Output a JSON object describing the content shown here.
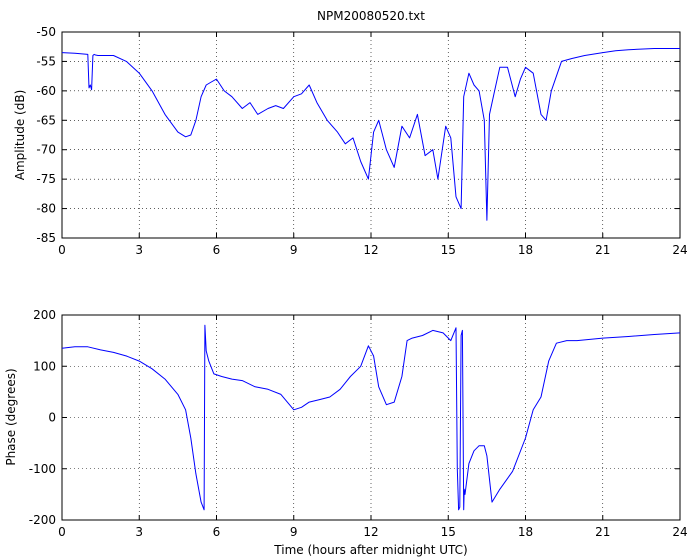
{
  "chart_data": [
    {
      "type": "line",
      "title": "NPM20080520.txt",
      "xlabel": "",
      "ylabel": "Amplitude (dB)",
      "xlim": [
        0,
        24
      ],
      "ylim": [
        -85,
        -50
      ],
      "xticks": [
        "0",
        "3",
        "6",
        "9",
        "12",
        "15",
        "18",
        "21",
        "24"
      ],
      "yticks": [
        "-85",
        "-80",
        "-75",
        "-70",
        "-65",
        "-60",
        "-55",
        "-50"
      ],
      "grid": true,
      "line_color": "#0000ff",
      "series": [
        {
          "x": [
            0,
            0.5,
            1.0,
            1.05,
            1.1,
            1.15,
            1.2,
            1.25,
            1.3,
            1.4,
            2,
            2.5,
            3,
            3.5,
            4,
            4.5,
            4.8,
            5.0,
            5.2,
            5.4,
            5.6,
            5.8,
            6.0,
            6.3,
            6.6,
            7.0,
            7.3,
            7.6,
            8.0,
            8.3,
            8.6,
            9.0,
            9.3,
            9.6,
            9.9,
            10.3,
            10.7,
            11.0,
            11.3,
            11.6,
            11.9,
            12.1,
            12.3,
            12.6,
            12.9,
            13.2,
            13.5,
            13.8,
            14.1,
            14.4,
            14.6,
            14.9,
            15.1,
            15.3,
            15.5,
            15.6,
            15.8,
            16.0,
            16.2,
            16.4,
            16.5,
            16.6,
            16.8,
            17.0,
            17.3,
            17.6,
            17.8,
            18.0,
            18.3,
            18.6,
            18.8,
            19.0,
            19.4,
            19.8,
            20.3,
            21.0,
            21.5,
            22,
            23,
            24
          ],
          "y": [
            -53.5,
            -53.6,
            -53.8,
            -59.5,
            -59,
            -59.8,
            -54,
            -53.8,
            -53.9,
            -54,
            -54,
            -55,
            -57,
            -60,
            -64,
            -67,
            -67.8,
            -67.5,
            -65,
            -61,
            -59,
            -58.5,
            -58,
            -60,
            -61,
            -63,
            -62,
            -64,
            -63,
            -62.5,
            -63,
            -61,
            -60.5,
            -59,
            -62,
            -65,
            -67,
            -69,
            -68,
            -72,
            -75,
            -67,
            -65,
            -70,
            -73,
            -66,
            -68,
            -64,
            -71,
            -70,
            -75,
            -66,
            -68,
            -78,
            -80,
            -61,
            -57,
            -59,
            -60,
            -65,
            -82,
            -64,
            -60,
            -56,
            -56,
            -61,
            -58,
            -56,
            -57,
            -64,
            -65,
            -60,
            -55,
            -54.5,
            -54,
            -53.5,
            -53.2,
            -53,
            -52.8,
            -52.8
          ]
        }
      ]
    },
    {
      "type": "line",
      "title": "",
      "xlabel": "Time (hours after midnight UTC)",
      "ylabel": "Phase (degrees)",
      "xlim": [
        0,
        24
      ],
      "ylim": [
        -200,
        200
      ],
      "xticks": [
        "0",
        "3",
        "6",
        "9",
        "12",
        "15",
        "18",
        "21",
        "24"
      ],
      "yticks": [
        "-200",
        "-100",
        "0",
        "100",
        "200"
      ],
      "grid": true,
      "line_color": "#0000ff",
      "series": [
        {
          "x": [
            0,
            0.5,
            1.0,
            1.5,
            2,
            2.5,
            3,
            3.5,
            4,
            4.5,
            4.8,
            5.0,
            5.2,
            5.4,
            5.52,
            5.55,
            5.6,
            5.7,
            5.9,
            6.2,
            6.6,
            7.0,
            7.5,
            8.0,
            8.5,
            9.0,
            9.3,
            9.6,
            10.0,
            10.4,
            10.8,
            11.2,
            11.6,
            11.9,
            12.1,
            12.3,
            12.6,
            12.9,
            13.2,
            13.4,
            13.6,
            14.0,
            14.4,
            14.8,
            15.1,
            15.3,
            15.35,
            15.4,
            15.45,
            15.5,
            15.55,
            15.6,
            15.62,
            15.65,
            15.8,
            16.0,
            16.2,
            16.4,
            16.5,
            16.7,
            17.0,
            17.5,
            18.0,
            18.3,
            18.6,
            18.9,
            19.2,
            19.6,
            20,
            21,
            22,
            23,
            24
          ],
          "y": [
            135,
            138,
            138,
            132,
            127,
            120,
            110,
            95,
            75,
            45,
            15,
            -40,
            -110,
            -165,
            -180,
            180,
            130,
            110,
            85,
            80,
            75,
            72,
            60,
            55,
            45,
            15,
            20,
            30,
            35,
            40,
            55,
            80,
            100,
            140,
            120,
            60,
            25,
            30,
            80,
            150,
            155,
            160,
            170,
            165,
            150,
            175,
            -100,
            -180,
            -175,
            160,
            170,
            -180,
            -140,
            -150,
            -90,
            -65,
            -55,
            -55,
            -75,
            -165,
            -140,
            -105,
            -40,
            15,
            40,
            110,
            145,
            150,
            150,
            155,
            158,
            162,
            165
          ]
        }
      ]
    }
  ]
}
